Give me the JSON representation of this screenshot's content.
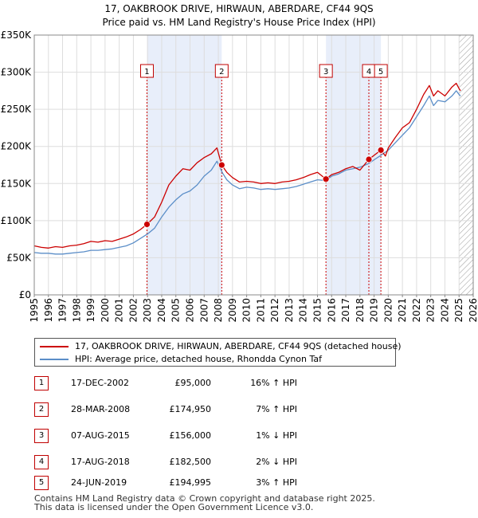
{
  "header": {
    "title_line1": "17, OAKBROOK DRIVE, HIRWAUN, ABERDARE, CF44 9QS",
    "title_line2": "Price paid vs. HM Land Registry's House Price Index (HPI)"
  },
  "colors": {
    "property": "#cc0000",
    "hpi": "#5b8ec8",
    "shade": "#e8eefa",
    "marker_border": "#c00000"
  },
  "chart_data": {
    "type": "line",
    "x_range": [
      1995,
      2026
    ],
    "y_range": [
      0,
      350000
    ],
    "y_ticks": [
      0,
      50000,
      100000,
      150000,
      200000,
      250000,
      300000,
      350000
    ],
    "y_tick_labels": [
      "£0",
      "£50K",
      "£100K",
      "£150K",
      "£200K",
      "£250K",
      "£300K",
      "£350K"
    ],
    "x_ticks": [
      1995,
      1996,
      1997,
      1998,
      1999,
      2000,
      2001,
      2002,
      2003,
      2004,
      2005,
      2006,
      2007,
      2008,
      2009,
      2010,
      2011,
      2012,
      2013,
      2014,
      2015,
      2016,
      2017,
      2018,
      2019,
      2020,
      2021,
      2022,
      2023,
      2024,
      2025,
      2026
    ],
    "x_tick_labels": [
      "1995",
      "1996",
      "1997",
      "1998",
      "1999",
      "2000",
      "2001",
      "2002",
      "2003",
      "2004",
      "2005",
      "2006",
      "2007",
      "2008",
      "2009",
      "2010",
      "2011",
      "2012",
      "2013",
      "2014",
      "2015",
      "2016",
      "2017",
      "2018",
      "2019",
      "2020",
      "2021",
      "2022",
      "2023",
      "2024",
      "2025",
      "2026"
    ],
    "shaded_spans": [
      [
        2002.96,
        2008.24
      ],
      [
        2015.6,
        2019.48
      ]
    ],
    "future_hatch_from": 2025.0,
    "series": [
      {
        "name": "17, OAKBROOK DRIVE, HIRWAUN, ABERDARE, CF44 9QS (detached house)",
        "color": "#cc0000",
        "x": [
          1995.0,
          1995.5,
          1996.0,
          1996.5,
          1997.0,
          1997.5,
          1998.0,
          1998.5,
          1999.0,
          1999.5,
          2000.0,
          2000.5,
          2001.0,
          2001.5,
          2002.0,
          2002.5,
          2002.96,
          2003.5,
          2004.0,
          2004.5,
          2005.0,
          2005.5,
          2006.0,
          2006.5,
          2007.0,
          2007.5,
          2007.9,
          2008.24,
          2008.6,
          2009.0,
          2009.5,
          2010.0,
          2010.5,
          2011.0,
          2011.5,
          2012.0,
          2012.5,
          2013.0,
          2013.5,
          2014.0,
          2014.5,
          2015.0,
          2015.6,
          2016.0,
          2016.5,
          2017.0,
          2017.5,
          2018.0,
          2018.63,
          2019.0,
          2019.48,
          2019.8,
          2020.0,
          2020.5,
          2021.0,
          2021.5,
          2022.0,
          2022.5,
          2022.9,
          2023.2,
          2023.5,
          2024.0,
          2024.5,
          2024.8,
          2025.0,
          2025.1
        ],
        "y": [
          66000,
          64000,
          63000,
          65000,
          64000,
          66000,
          67000,
          69000,
          72000,
          71000,
          73000,
          72000,
          75000,
          78000,
          82000,
          88000,
          95000,
          105000,
          125000,
          148000,
          160000,
          170000,
          168000,
          178000,
          185000,
          190000,
          198000,
          174950,
          165000,
          158000,
          152000,
          153000,
          152000,
          150000,
          151000,
          150000,
          152000,
          153000,
          155000,
          158000,
          162000,
          165000,
          156000,
          162000,
          165000,
          170000,
          173000,
          168000,
          182500,
          188000,
          194995,
          187000,
          198000,
          212000,
          225000,
          232000,
          250000,
          270000,
          282000,
          268000,
          275000,
          268000,
          280000,
          285000,
          278000,
          275000
        ]
      },
      {
        "name": "HPI: Average price, detached house, Rhondda Cynon Taf",
        "color": "#5b8ec8",
        "x": [
          1995.0,
          1995.5,
          1996.0,
          1996.5,
          1997.0,
          1997.5,
          1998.0,
          1998.5,
          1999.0,
          1999.5,
          2000.0,
          2000.5,
          2001.0,
          2001.5,
          2002.0,
          2002.5,
          2003.0,
          2003.5,
          2004.0,
          2004.5,
          2005.0,
          2005.5,
          2006.0,
          2006.5,
          2007.0,
          2007.5,
          2007.9,
          2008.3,
          2008.6,
          2009.0,
          2009.5,
          2010.0,
          2010.5,
          2011.0,
          2011.5,
          2012.0,
          2012.5,
          2013.0,
          2013.5,
          2014.0,
          2014.5,
          2015.0,
          2015.6,
          2016.0,
          2016.5,
          2017.0,
          2017.5,
          2018.0,
          2018.63,
          2019.0,
          2019.48,
          2020.0,
          2020.5,
          2021.0,
          2021.5,
          2022.0,
          2022.5,
          2022.9,
          2023.2,
          2023.5,
          2024.0,
          2024.5,
          2024.8,
          2025.0,
          2025.1
        ],
        "y": [
          57000,
          56000,
          56000,
          55000,
          55000,
          56000,
          57000,
          58000,
          60000,
          60000,
          61000,
          62000,
          64000,
          66000,
          70000,
          76000,
          82000,
          90000,
          105000,
          118000,
          128000,
          136000,
          140000,
          148000,
          160000,
          168000,
          180000,
          164000,
          155000,
          148000,
          143000,
          145000,
          144000,
          142000,
          143000,
          142000,
          143000,
          144000,
          146000,
          149000,
          152000,
          155000,
          154000,
          160000,
          163000,
          168000,
          170000,
          172000,
          177000,
          182000,
          188000,
          195000,
          205000,
          215000,
          225000,
          240000,
          255000,
          268000,
          255000,
          262000,
          260000,
          268000,
          275000,
          270000,
          268000
        ]
      }
    ],
    "markers": [
      {
        "label": "1",
        "x": 2002.96,
        "y": 95000
      },
      {
        "label": "2",
        "x": 2008.24,
        "y": 174950
      },
      {
        "label": "3",
        "x": 2015.6,
        "y": 156000
      },
      {
        "label": "4",
        "x": 2018.63,
        "y": 182500
      },
      {
        "label": "5",
        "x": 2019.48,
        "y": 194995
      }
    ]
  },
  "legend": {
    "property_label": "17, OAKBROOK DRIVE, HIRWAUN, ABERDARE, CF44 9QS (detached house)",
    "hpi_label": "HPI: Average price, detached house, Rhondda Cynon Taf"
  },
  "transactions": [
    {
      "num": "1",
      "date": "17-DEC-2002",
      "price": "£95,000",
      "hpi": "16% ↑ HPI"
    },
    {
      "num": "2",
      "date": "28-MAR-2008",
      "price": "£174,950",
      "hpi": "7% ↑ HPI"
    },
    {
      "num": "3",
      "date": "07-AUG-2015",
      "price": "£156,000",
      "hpi": "1% ↓ HPI"
    },
    {
      "num": "4",
      "date": "17-AUG-2018",
      "price": "£182,500",
      "hpi": "2% ↓ HPI"
    },
    {
      "num": "5",
      "date": "24-JUN-2019",
      "price": "£194,995",
      "hpi": "3% ↑ HPI"
    }
  ],
  "footer": {
    "line1": "Contains HM Land Registry data © Crown copyright and database right 2025.",
    "line2": "This data is licensed under the Open Government Licence v3.0."
  }
}
